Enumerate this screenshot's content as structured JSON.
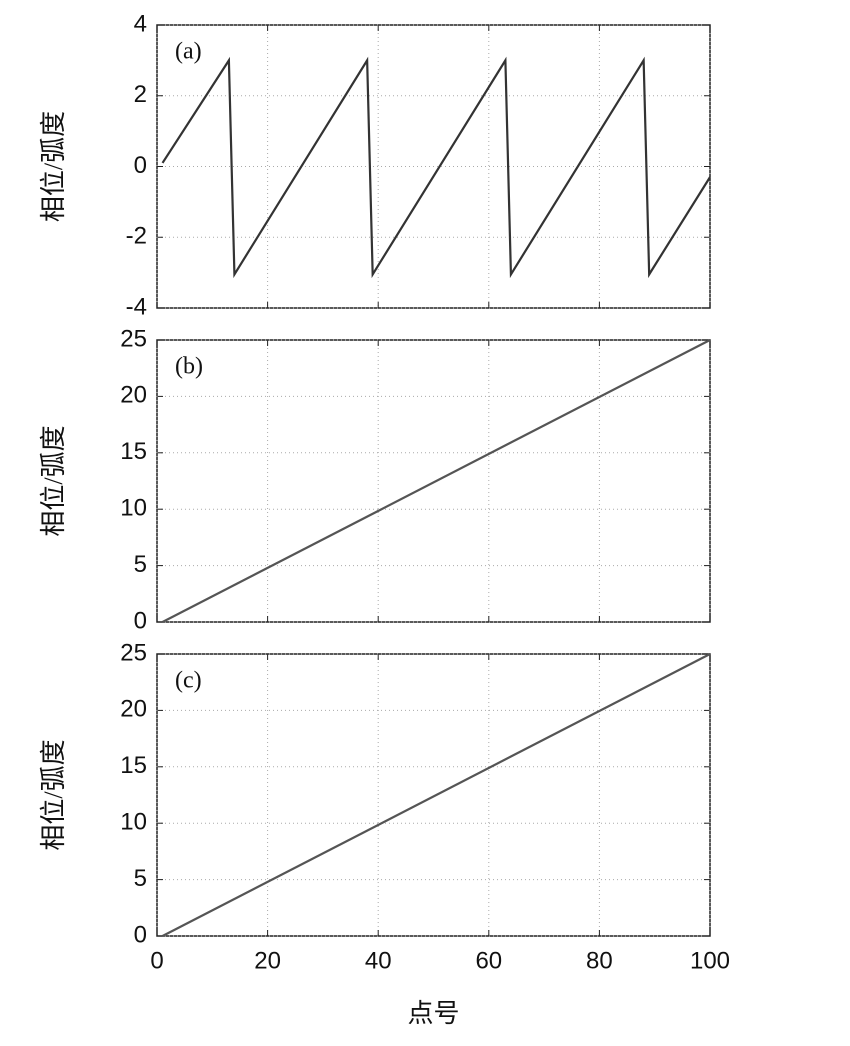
{
  "chart_data": [
    {
      "type": "line",
      "annotation": "(a)",
      "y_label": "相位/弧度",
      "x": [
        1,
        13,
        14,
        38,
        39,
        63,
        64,
        88,
        89,
        100
      ],
      "series": [
        {
          "color": "#333333",
          "values": [
            0.1,
            3.0,
            -3.05,
            3.0,
            -3.05,
            3.0,
            -3.05,
            3.0,
            -3.05,
            -0.3
          ]
        }
      ],
      "xlim": [
        0,
        100
      ],
      "xticks": [
        0,
        20,
        40,
        60,
        80,
        100
      ],
      "ylim": [
        -4,
        4
      ],
      "yticks": [
        -4,
        -2,
        0,
        2,
        4
      ],
      "grid": true
    },
    {
      "type": "line",
      "annotation": "(b)",
      "y_label": "相位/弧度",
      "x": [
        1,
        100
      ],
      "series": [
        {
          "color": "#555555",
          "values": [
            0,
            25
          ]
        }
      ],
      "xlim": [
        0,
        100
      ],
      "xticks": [
        0,
        20,
        40,
        60,
        80,
        100
      ],
      "ylim": [
        0,
        25
      ],
      "yticks": [
        0,
        5,
        10,
        15,
        20,
        25
      ],
      "grid": true
    },
    {
      "type": "line",
      "annotation": "(c)",
      "y_label": "相位/弧度",
      "x_label": "点号",
      "x": [
        1,
        100
      ],
      "series": [
        {
          "color": "#555555",
          "values": [
            0,
            25
          ]
        }
      ],
      "xlim": [
        0,
        100
      ],
      "xticks": [
        0,
        20,
        40,
        60,
        80,
        100
      ],
      "ylim": [
        0,
        25
      ],
      "yticks": [
        0,
        5,
        10,
        15,
        20,
        25
      ],
      "grid": true
    }
  ]
}
